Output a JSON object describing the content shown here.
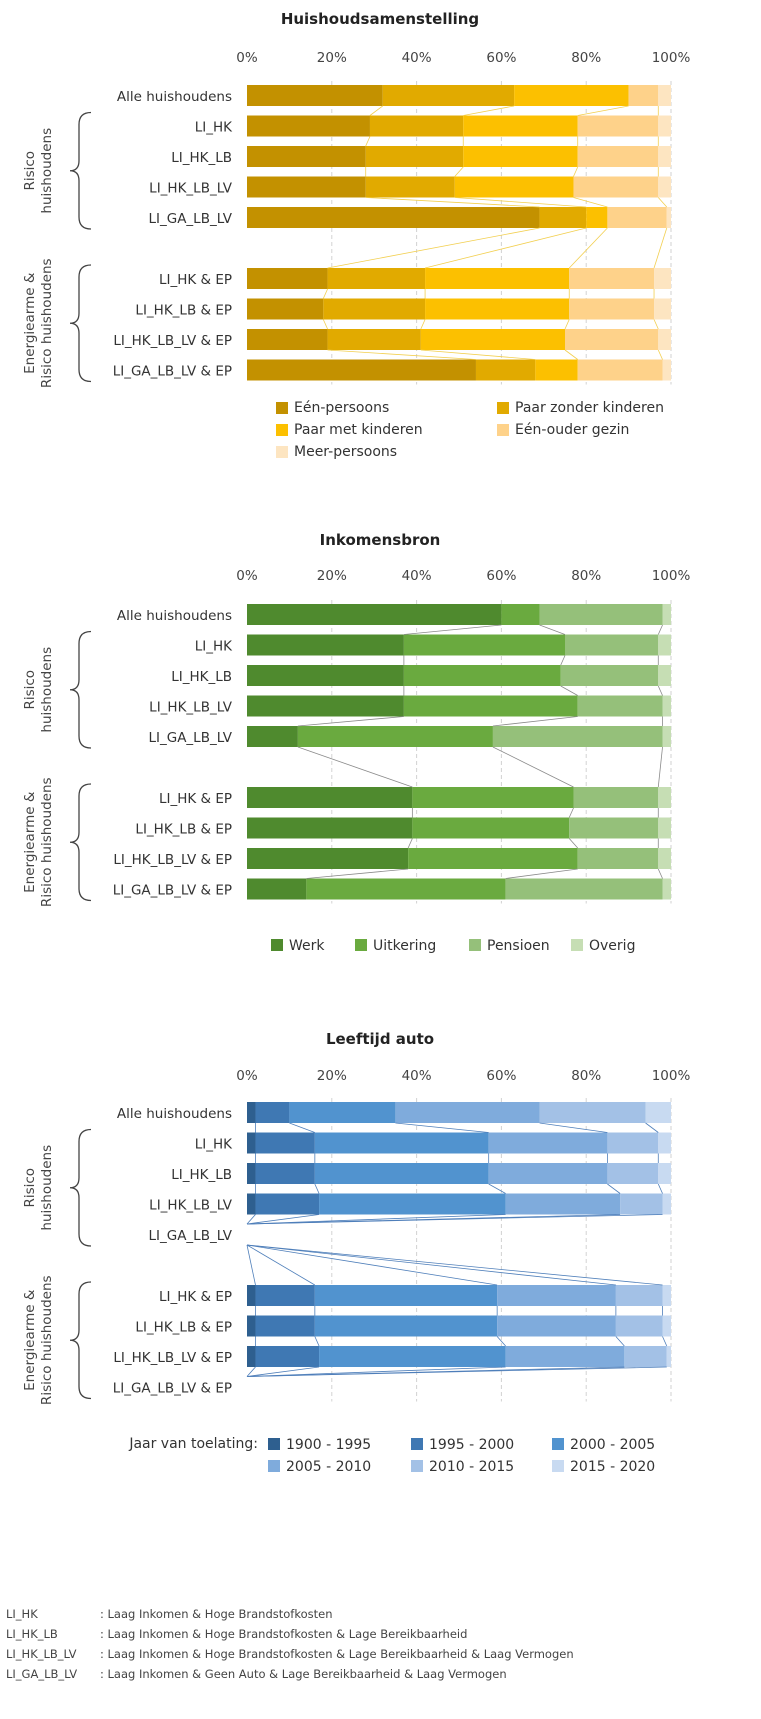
{
  "chart_data": [
    {
      "type": "bar",
      "orientation": "horizontal",
      "stacked": true,
      "title": "Huishoudsamenstelling",
      "xlim": [
        0,
        100
      ],
      "xticks": [
        "0%",
        "20%",
        "40%",
        "60%",
        "80%",
        "100%"
      ],
      "grid": true,
      "legend_position": "bottom",
      "legend_title": "",
      "group_labels": [
        "Risico huishoudens",
        "Energiearme & Risico huishoudens"
      ],
      "categories": [
        "Alle huishoudens",
        "LI_HK",
        "LI_HK_LB",
        "LI_HK_LB_LV",
        "LI_GA_LB_LV",
        "LI_HK & EP",
        "LI_HK_LB & EP",
        "LI_HK_LB_LV & EP",
        "LI_GA_LB_LV & EP"
      ],
      "series": [
        {
          "name": "Eén-persoons",
          "color": "#c39100",
          "values": [
            32,
            29,
            28,
            28,
            69,
            19,
            18,
            19,
            54
          ]
        },
        {
          "name": "Paar zonder kinderen",
          "color": "#e1aa00",
          "values": [
            31,
            22,
            23,
            21,
            11,
            23,
            24,
            22,
            14
          ]
        },
        {
          "name": "Paar met kinderen",
          "color": "#fcc000",
          "values": [
            27,
            27,
            27,
            28,
            5,
            34,
            34,
            34,
            10
          ]
        },
        {
          "name": "Eén-ouder gezin",
          "color": "#fed28a",
          "values": [
            7,
            19,
            19,
            20,
            14,
            20,
            20,
            22,
            20
          ]
        },
        {
          "name": "Meer-persoons",
          "color": "#fde5c1",
          "values": [
            3,
            3,
            3,
            3,
            1,
            4,
            4,
            3,
            2
          ]
        }
      ]
    },
    {
      "type": "bar",
      "orientation": "horizontal",
      "stacked": true,
      "title": "Inkomensbron",
      "xlim": [
        0,
        100
      ],
      "xticks": [
        "0%",
        "20%",
        "40%",
        "60%",
        "80%",
        "100%"
      ],
      "grid": true,
      "legend_position": "bottom",
      "legend_title": "",
      "group_labels": [
        "Risico huishoudens",
        "Energiearme & Risico huishoudens"
      ],
      "categories": [
        "Alle huishoudens",
        "LI_HK",
        "LI_HK_LB",
        "LI_HK_LB_LV",
        "LI_GA_LB_LV",
        "LI_HK & EP",
        "LI_HK_LB & EP",
        "LI_HK_LB_LV & EP",
        "LI_GA_LB_LV & EP"
      ],
      "series": [
        {
          "name": "Werk",
          "color": "#4f8a2e",
          "values": [
            60,
            37,
            37,
            37,
            12,
            39,
            39,
            38,
            14
          ]
        },
        {
          "name": "Uitkering",
          "color": "#6aaa3f",
          "values": [
            9,
            38,
            37,
            41,
            46,
            38,
            37,
            40,
            47
          ]
        },
        {
          "name": "Pensioen",
          "color": "#95c07a",
          "values": [
            29,
            22,
            23,
            20,
            40,
            20,
            21,
            19,
            37
          ]
        },
        {
          "name": "Overig",
          "color": "#c6deb4",
          "values": [
            2,
            3,
            3,
            2,
            2,
            3,
            3,
            3,
            2
          ]
        }
      ]
    },
    {
      "type": "bar",
      "orientation": "horizontal",
      "stacked": true,
      "title": "Leeftijd auto",
      "xlim": [
        0,
        100
      ],
      "xticks": [
        "0%",
        "20%",
        "40%",
        "60%",
        "80%",
        "100%"
      ],
      "grid": true,
      "legend_position": "bottom",
      "legend_title": "Jaar van toelating:",
      "group_labels": [
        "Risico huishoudens",
        "Energiearme & Risico huishoudens"
      ],
      "categories": [
        "Alle huishoudens",
        "LI_HK",
        "LI_HK_LB",
        "LI_HK_LB_LV",
        "LI_GA_LB_LV",
        "LI_HK & EP",
        "LI_HK_LB & EP",
        "LI_HK_LB_LV & EP",
        "LI_GA_LB_LV & EP"
      ],
      "series": [
        {
          "name": "1900 - 1995",
          "color": "#2e5f8f",
          "values": [
            2,
            2,
            2,
            2,
            0,
            2,
            2,
            2,
            0
          ]
        },
        {
          "name": "1995 - 2000",
          "color": "#3f78b3",
          "values": [
            8,
            14,
            14,
            15,
            0,
            14,
            14,
            15,
            0
          ]
        },
        {
          "name": "2000 - 2005",
          "color": "#5193cf",
          "values": [
            25,
            41,
            41,
            44,
            0,
            43,
            43,
            44,
            0
          ]
        },
        {
          "name": "2005 - 2010",
          "color": "#7fabdc",
          "values": [
            34,
            28,
            28,
            27,
            0,
            28,
            28,
            28,
            0
          ]
        },
        {
          "name": "2010 - 2015",
          "color": "#a3c1e6",
          "values": [
            25,
            12,
            12,
            10,
            0,
            11,
            11,
            10,
            0
          ]
        },
        {
          "name": "2015 - 2020",
          "color": "#c8daf1",
          "values": [
            6,
            3,
            3,
            2,
            0,
            2,
            2,
            1,
            0
          ]
        }
      ]
    }
  ],
  "footnotes": [
    {
      "abbr": "LI_HK",
      "text": ": Laag Inkomen & Hoge Brandstofkosten"
    },
    {
      "abbr": "LI_HK_LB",
      "text": ": Laag Inkomen & Hoge Brandstofkosten & Lage Bereikbaarheid"
    },
    {
      "abbr": "LI_HK_LB_LV",
      "text": ": Laag Inkomen & Hoge Brandstofkosten & Lage Bereikbaarheid & Laag Vermogen"
    },
    {
      "abbr": "LI_GA_LB_LV",
      "text": ": Laag Inkomen & Geen Auto & Lage Bereikbaarheid & Laag Vermogen"
    }
  ]
}
